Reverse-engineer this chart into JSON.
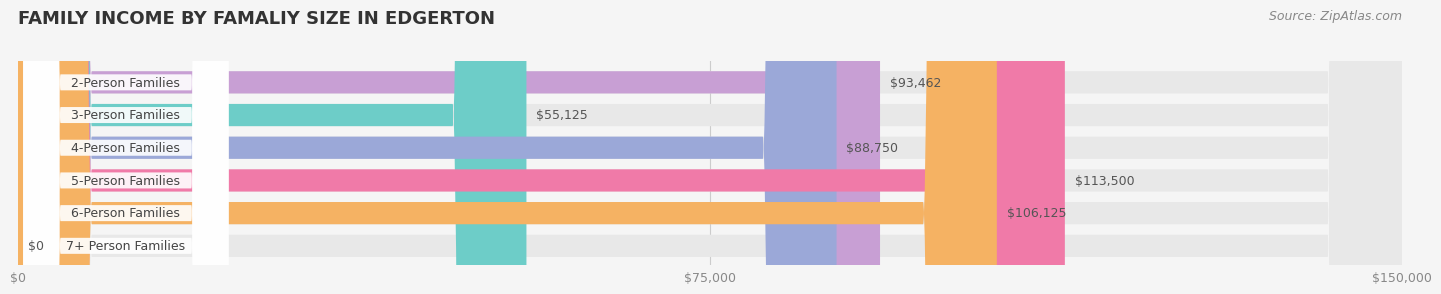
{
  "title": "FAMILY INCOME BY FAMALIY SIZE IN EDGERTON",
  "source": "Source: ZipAtlas.com",
  "categories": [
    "2-Person Families",
    "3-Person Families",
    "4-Person Families",
    "5-Person Families",
    "6-Person Families",
    "7+ Person Families"
  ],
  "values": [
    93462,
    55125,
    88750,
    113500,
    106125,
    0
  ],
  "bar_colors": [
    "#c89fd4",
    "#6dcdc8",
    "#9ba8d8",
    "#f07aa8",
    "#f5b263",
    "#f5c5c5"
  ],
  "value_labels": [
    "$93,462",
    "$55,125",
    "$88,750",
    "$113,500",
    "$106,125",
    "$0"
  ],
  "xlim": [
    0,
    150000
  ],
  "xtick_labels": [
    "$0",
    "$75,000",
    "$150,000"
  ],
  "background_color": "#f5f5f5",
  "bar_bg_color": "#e8e8e8",
  "title_fontsize": 13,
  "label_fontsize": 9,
  "value_fontsize": 9,
  "source_fontsize": 9
}
